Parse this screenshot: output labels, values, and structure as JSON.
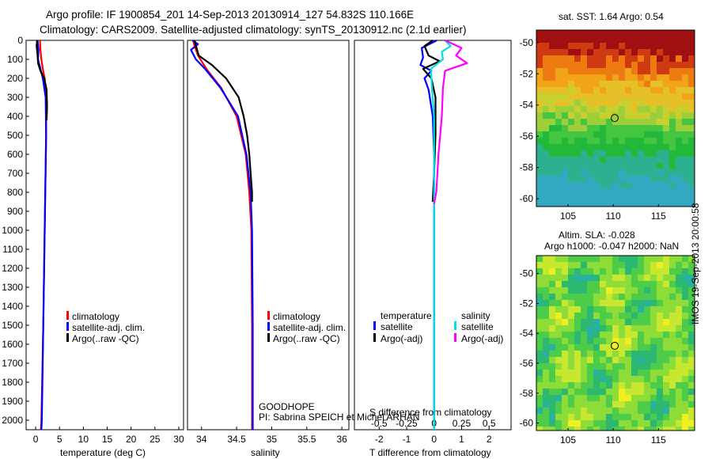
{
  "header": {
    "line1": "Argo profile: IF 1900854_201 14-Sep-2013 20130914_127 54.832S 110.166E",
    "line2": "Climatology: CARS2009. Satellite-adjusted climatology: synTS_20130912.nc (2.1d earlier)"
  },
  "depth_ticks": [
    "0",
    "100",
    "200",
    "300",
    "400",
    "500",
    "600",
    "700",
    "800",
    "900",
    "1000",
    "1100",
    "1200",
    "1300",
    "1400",
    "1500",
    "1600",
    "1700",
    "1800",
    "1900",
    "2000"
  ],
  "colors": {
    "climatology": "#ff0000",
    "satellite": "#0000ff",
    "argo": "#000000",
    "sal_sat": "#00e0e0",
    "sal_argo": "#ff00ff"
  },
  "chart_data": [
    {
      "type": "line",
      "xlabel": "temperature (deg C)",
      "xlim": [
        -2,
        31
      ],
      "xticks": [
        "0",
        "5",
        "10",
        "15",
        "20",
        "25",
        "30"
      ],
      "ylim": [
        2050,
        0
      ],
      "legend": [
        "climatology",
        "satellite-adj. clim.",
        "Argo(..raw -QC)"
      ],
      "series": [
        {
          "name": "climatology",
          "depth": [
            0,
            50,
            100,
            150,
            200,
            300,
            500,
            1000,
            1500,
            2000,
            2050
          ],
          "values": [
            0.9,
            1.0,
            1.2,
            1.5,
            1.9,
            2.2,
            2.2,
            1.9,
            1.6,
            1.2,
            1.1
          ]
        },
        {
          "name": "satellite-adj. clim.",
          "depth": [
            0,
            50,
            100,
            130,
            200,
            300,
            500,
            1000,
            1500,
            2000,
            2050
          ],
          "values": [
            0.4,
            0.6,
            0.5,
            0.8,
            1.5,
            2.1,
            2.2,
            1.9,
            1.6,
            1.3,
            1.2
          ]
        },
        {
          "name": "Argo(..raw -QC)",
          "depth": [
            0,
            30,
            80,
            120,
            160,
            200,
            260,
            350,
            420
          ],
          "values": [
            0.3,
            0.2,
            0.4,
            0.5,
            1.0,
            1.8,
            2.3,
            2.4,
            2.3
          ]
        }
      ]
    },
    {
      "type": "line",
      "xlabel": "salinity",
      "xlim": [
        33.8,
        36.1
      ],
      "xticks": [
        "34",
        "34.5",
        "35",
        "35.5",
        "36"
      ],
      "ylim": [
        2050,
        0
      ],
      "legend": [
        "climatology",
        "satellite-adj. clim.",
        "Argo(..raw -QC)"
      ],
      "series": [
        {
          "name": "climatology",
          "depth": [
            0,
            30,
            80,
            150,
            250,
            400,
            600,
            800,
            1000,
            1500,
            2000,
            2050
          ],
          "values": [
            33.88,
            33.9,
            33.95,
            34.07,
            34.28,
            34.5,
            34.63,
            34.68,
            34.71,
            34.72,
            34.72,
            34.72
          ]
        },
        {
          "name": "satellite-adj. clim.",
          "depth": [
            0,
            20,
            50,
            100,
            150,
            250,
            400,
            600,
            800,
            1000,
            1500,
            2000,
            2050
          ],
          "values": [
            33.87,
            33.95,
            33.85,
            33.92,
            34.05,
            34.27,
            34.52,
            34.64,
            34.7,
            34.72,
            34.73,
            34.73,
            34.73
          ]
        },
        {
          "name": "Argo(..raw -QC)",
          "depth": [
            0,
            40,
            80,
            130,
            200,
            300,
            400,
            500,
            600,
            700,
            800,
            850
          ],
          "values": [
            33.9,
            33.93,
            33.96,
            34.15,
            34.35,
            34.53,
            34.6,
            34.65,
            34.68,
            34.7,
            34.72,
            34.72
          ]
        }
      ]
    },
    {
      "type": "line",
      "xlabel": "T difference from climatology",
      "xlabel2": "S difference from climatology",
      "xlim": [
        -2.9,
        2.8
      ],
      "xticks": [
        "-2",
        "-1",
        "0",
        "1",
        "2"
      ],
      "xticks_s": [
        "-0.5",
        "-0.25",
        "0",
        "0.25",
        "0.5"
      ],
      "ylim": [
        2050,
        0
      ],
      "legend_temperature": {
        "title": "temperature",
        "items": [
          "satellite",
          "Argo(-adj)"
        ]
      },
      "legend_salinity": {
        "title": "salinity",
        "items": [
          "satellite",
          "Argo(-adj)"
        ]
      },
      "series": [
        {
          "name": "temperature satellite",
          "depth": [
            0,
            40,
            90,
            130,
            160,
            200,
            260,
            400,
            600,
            800,
            1000,
            1500,
            2000,
            2050
          ],
          "values": [
            0.1,
            -0.45,
            -0.4,
            -0.5,
            -0.1,
            -0.35,
            -0.2,
            -0.05,
            0.0,
            0.0,
            0.0,
            0.0,
            0.0,
            0.0
          ]
        },
        {
          "name": "temperature Argo(-adj)",
          "depth": [
            0,
            30,
            80,
            110,
            150,
            200,
            300,
            500,
            700,
            850
          ],
          "values": [
            -0.05,
            -0.35,
            -0.2,
            0.2,
            -0.4,
            -0.1,
            0.05,
            0.05,
            0.0,
            -0.05
          ]
        },
        {
          "name": "salinity satellite",
          "depth": [
            0,
            30,
            60,
            100,
            150,
            250,
            400,
            600,
            800,
            1000,
            1500,
            2000,
            2050
          ],
          "values": [
            0.1,
            0.15,
            0.07,
            0.08,
            -0.03,
            -0.02,
            0.0,
            0.0,
            0.0,
            0.0,
            0.0,
            0.0,
            0.0
          ]
        },
        {
          "name": "salinity Argo(-adj)",
          "depth": [
            0,
            40,
            80,
            120,
            160,
            250,
            400,
            600,
            800,
            860
          ],
          "values": [
            0.1,
            0.25,
            0.2,
            0.3,
            0.1,
            0.08,
            0.07,
            0.04,
            0.02,
            0.0
          ]
        }
      ]
    }
  ],
  "sst_map": {
    "title": "sat. SST: 1.64  Argo: 0.54",
    "xticks": [
      "105",
      "110",
      "115"
    ],
    "yticks": [
      "-50",
      "-52",
      "-54",
      "-56",
      "-58",
      "-60"
    ],
    "xlim": [
      101.5,
      119
    ],
    "ylim": [
      -60.5,
      -49.2
    ],
    "argo_lon": 110.166,
    "argo_lat": -54.832
  },
  "sla_map": {
    "title1": "Altim. SLA: -0.028",
    "title2": "Argo h1000: -0.047 h2000: NaN",
    "xticks": [
      "105",
      "110",
      "115"
    ],
    "yticks": [
      "-50",
      "-52",
      "-54",
      "-56",
      "-58",
      "-60"
    ],
    "xlim": [
      101.5,
      119
    ],
    "ylim": [
      -60.5,
      -48.8
    ],
    "argo_lon": 110.166,
    "argo_lat": -54.832
  },
  "annotation": {
    "line1": "GOODHOPE",
    "line2": "PI: Sabrina SPEICH et Michel ARHAN"
  },
  "side_label": "IMOS 19-Sep-2013 20:00:58"
}
